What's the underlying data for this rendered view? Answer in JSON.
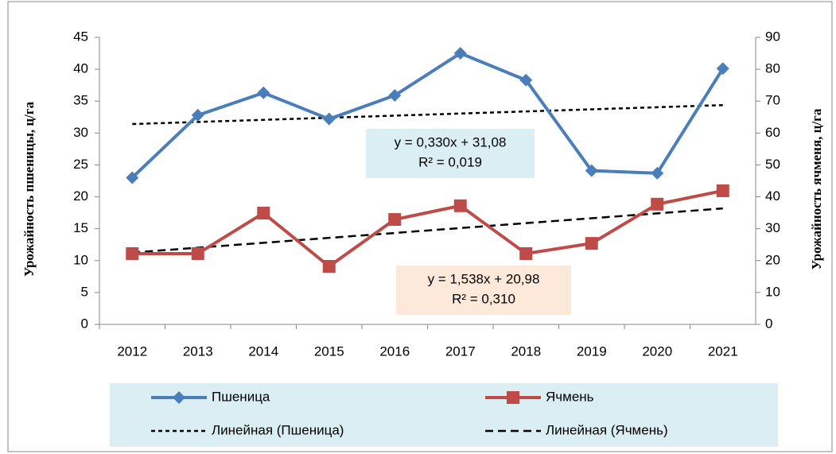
{
  "chart_data": {
    "type": "line",
    "categories": [
      "2012",
      "2013",
      "2014",
      "2015",
      "2016",
      "2017",
      "2018",
      "2019",
      "2020",
      "2021"
    ],
    "y_label": "Урожайность пшеницы, ц/га",
    "y2_label": "Урожайность ячменя, ц/га",
    "ylim": [
      0,
      45
    ],
    "yticks": [
      0,
      5,
      10,
      15,
      20,
      25,
      30,
      35,
      40,
      45
    ],
    "y2lim": [
      0,
      90
    ],
    "y2ticks": [
      0,
      10,
      20,
      30,
      40,
      50,
      60,
      70,
      80,
      90
    ],
    "grid": false,
    "legend": "bottom",
    "series": [
      {
        "name": "Пшеница",
        "color": "#4a7ebb",
        "marker": "diamond",
        "values": [
          23,
          32.8,
          36.3,
          32.2,
          35.9,
          42.5,
          38.3,
          24.1,
          23.7,
          40.1
        ]
      },
      {
        "name": "Ячмень",
        "color": "#be4b48",
        "marker": "square",
        "axis": "y2",
        "values": [
          22.2,
          22.2,
          34.9,
          18.2,
          32.9,
          37.2,
          22.2,
          25.4,
          37.7,
          41.9
        ]
      },
      {
        "name": "Линейная (Пшеница)",
        "color": "#000000",
        "dash": "short",
        "values": [
          31.41,
          31.74,
          32.07,
          32.4,
          32.73,
          33.06,
          33.39,
          33.72,
          34.05,
          34.38
        ]
      },
      {
        "name": "Линейная (Ячмень)",
        "color": "#000000",
        "dash": "long",
        "axis": "y2",
        "values": [
          22.52,
          24.06,
          25.59,
          27.13,
          28.67,
          30.21,
          31.75,
          33.28,
          34.82,
          36.36
        ]
      }
    ],
    "annotations": [
      {
        "lines": [
          "y = 0,330x + 31,08",
          "R² = 0,019"
        ],
        "color": "#dbeef4"
      },
      {
        "lines": [
          "y = 1,538x + 20,98",
          "R² = 0,310"
        ],
        "color": "#fde9d9"
      }
    ]
  }
}
